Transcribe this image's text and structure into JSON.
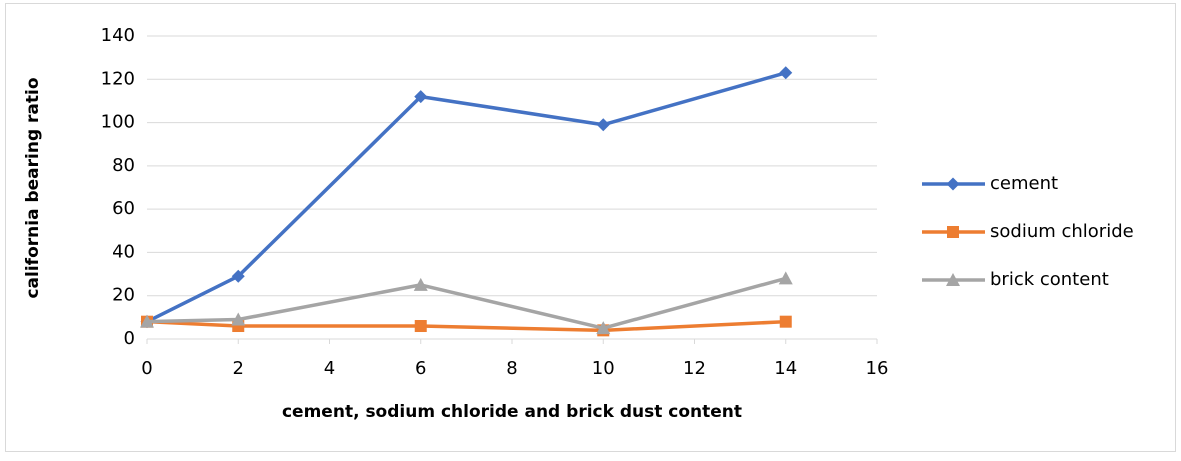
{
  "chart_data": {
    "type": "line",
    "x_label": "cement, sodium chloride and brick dust content",
    "y_label": "california bearing ratio",
    "x": [
      0,
      2,
      6,
      10,
      14
    ],
    "series": [
      {
        "name": "cement",
        "color": "#4472c4",
        "marker": "diamond",
        "values": [
          8,
          29,
          112,
          99,
          123
        ]
      },
      {
        "name": "sodium chloride",
        "color": "#ed7d31",
        "marker": "square",
        "values": [
          8,
          6,
          6,
          4,
          8
        ]
      },
      {
        "name": "brick content",
        "color": "#a5a5a5",
        "marker": "triangle",
        "values": [
          8,
          9,
          25,
          5,
          28
        ]
      }
    ],
    "xlim": [
      0,
      16
    ],
    "xticks": [
      0,
      2,
      4,
      6,
      8,
      10,
      12,
      14,
      16
    ],
    "ylim": [
      0,
      140
    ],
    "yticks": [
      0,
      20,
      40,
      60,
      80,
      100,
      120,
      140
    ],
    "grid": true,
    "legend": "right"
  }
}
